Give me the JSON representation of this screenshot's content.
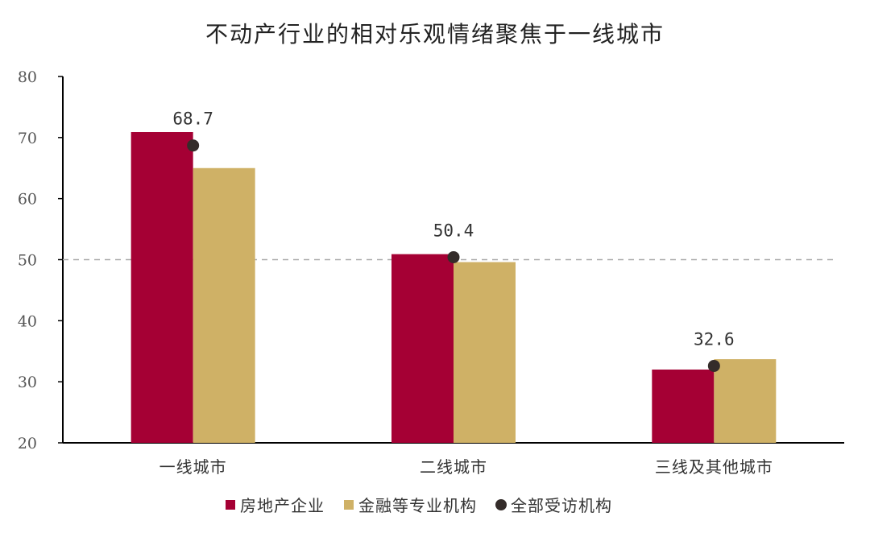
{
  "chart_data": {
    "type": "bar",
    "title": "不动产行业的相对乐观情绪聚焦于一线城市",
    "categories": [
      "一线城市",
      "二线城市",
      "三线及其他城市"
    ],
    "series": [
      {
        "name": "房地产企业",
        "kind": "bar",
        "color": "#A50034",
        "values": [
          70.9,
          50.9,
          32.0
        ]
      },
      {
        "name": "金融等专业机构",
        "kind": "bar",
        "color": "#CFB166",
        "values": [
          65.0,
          49.6,
          33.7
        ]
      },
      {
        "name": "全部受访机构",
        "kind": "point",
        "color": "#342C2A",
        "values": [
          68.7,
          50.4,
          32.6
        ]
      }
    ],
    "data_labels": [
      "68.7",
      "50.4",
      "32.6"
    ],
    "reference_line": 50,
    "ylim": [
      20,
      80
    ],
    "yticks": [
      20,
      30,
      40,
      50,
      60,
      70,
      80
    ],
    "xlabel": "",
    "ylabel": "",
    "legend_position": "bottom-center",
    "grid": false
  }
}
